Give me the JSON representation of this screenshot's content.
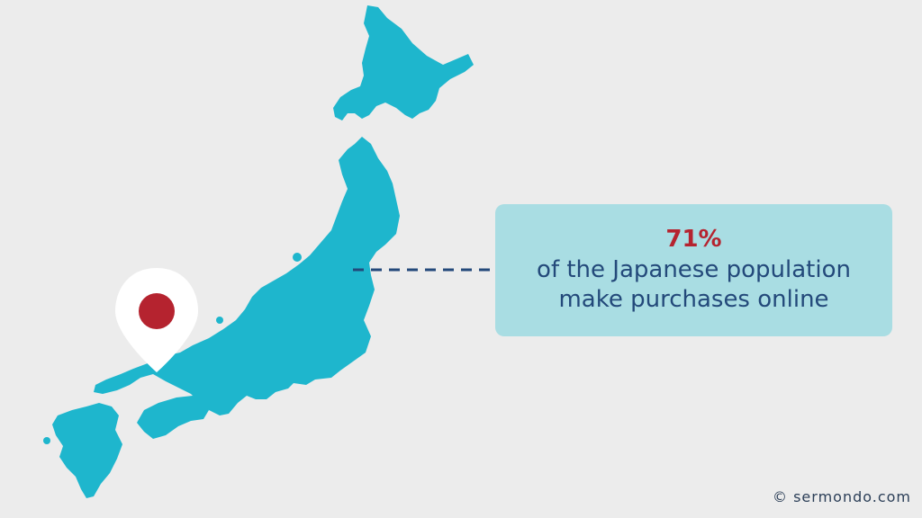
{
  "map": {
    "region": "Japan",
    "land_color": "#1eb6cd",
    "background_color": "#ececec",
    "marker_icon": "location-pin-icon",
    "marker_flag": "japan-flag-icon",
    "marker_dot_color": "#b5232f"
  },
  "callout": {
    "stat": "71%",
    "line1": "of the Japanese population",
    "line2": "make purchases online",
    "stat_color": "#b5232f",
    "text_color": "#23497a",
    "box_color": "#a9dde3"
  },
  "footer": {
    "copyright": "© sermondo.com"
  }
}
